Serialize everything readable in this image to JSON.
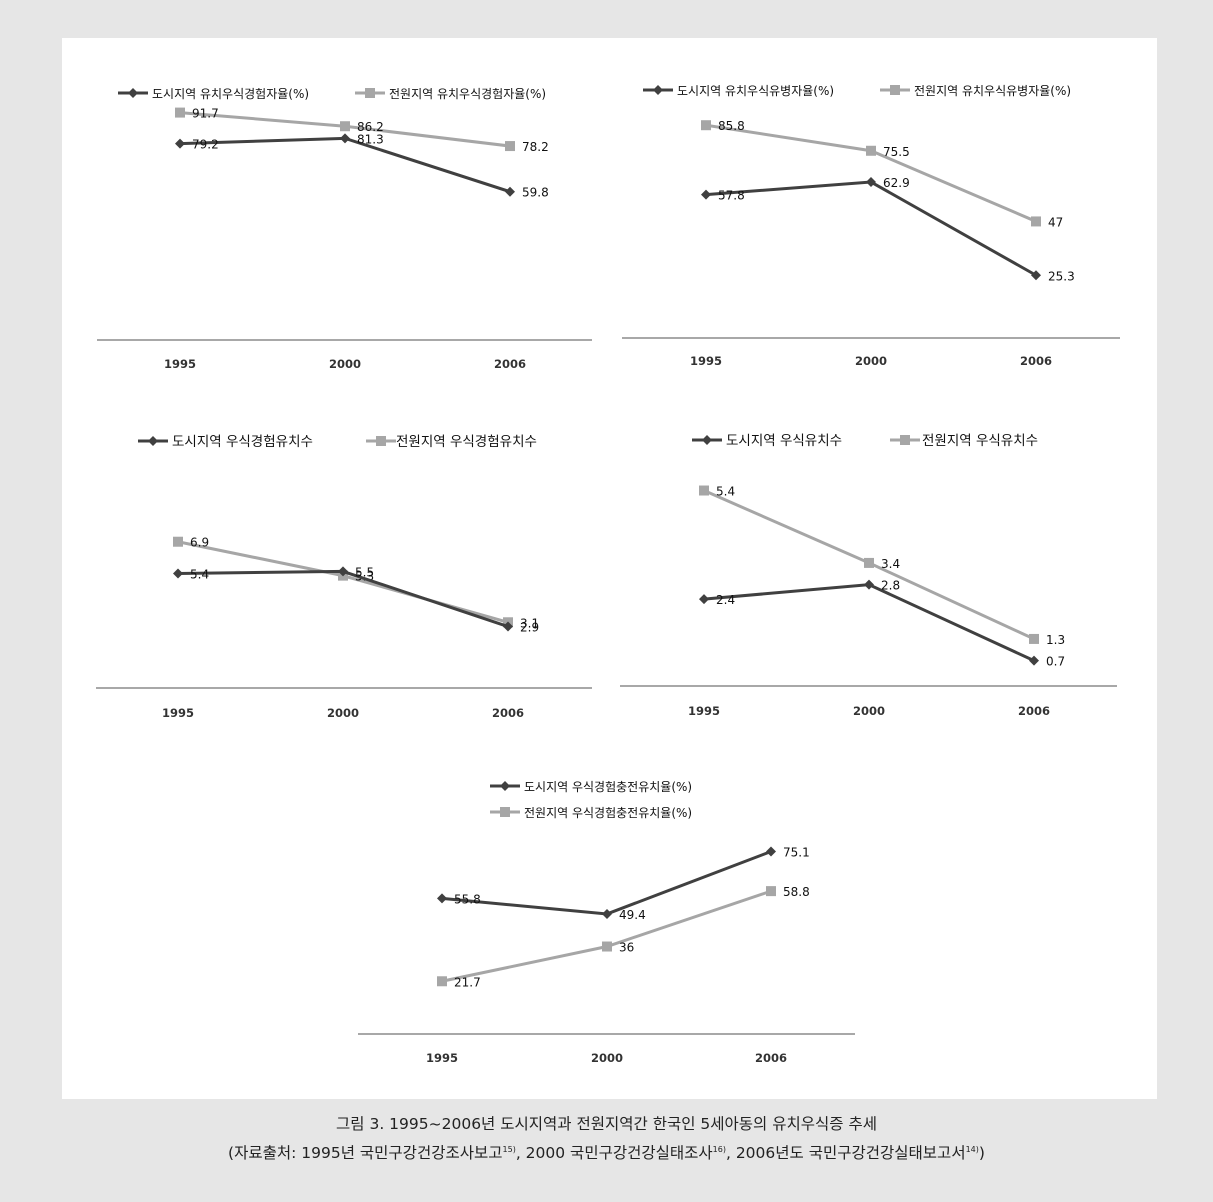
{
  "chart_data": [
    {
      "type": "line",
      "categories": [
        "1995",
        "2000",
        "2006"
      ],
      "series": [
        {
          "name": "도시지역 유치우식경험자율(%)",
          "values": [
            79.2,
            81.3,
            59.8
          ],
          "color": "#404040",
          "marker": "diamond"
        },
        {
          "name": "전원지역 유치우식경험자율(%)",
          "values": [
            91.7,
            86.2,
            78.2
          ],
          "color": "#a6a6a6",
          "marker": "square"
        }
      ],
      "legend_position": "top",
      "grid": false
    },
    {
      "type": "line",
      "categories": [
        "1995",
        "2000",
        "2006"
      ],
      "series": [
        {
          "name": "도시지역 유치우식유병자율(%)",
          "values": [
            57.8,
            62.9,
            25.3
          ],
          "color": "#404040",
          "marker": "diamond"
        },
        {
          "name": "전원지역 유치우식유병자율(%)",
          "values": [
            85.8,
            75.5,
            47.0
          ],
          "color": "#a6a6a6",
          "marker": "square"
        }
      ],
      "legend_position": "top",
      "grid": false
    },
    {
      "type": "line",
      "categories": [
        "1995",
        "2000",
        "2006"
      ],
      "series": [
        {
          "name": "도시지역 우식경험유치수",
          "values": [
            5.4,
            5.5,
            2.9
          ],
          "color": "#404040",
          "marker": "diamond"
        },
        {
          "name": "전원지역 우식경험유치수",
          "values": [
            6.9,
            5.3,
            3.1
          ],
          "color": "#a6a6a6",
          "marker": "square"
        }
      ],
      "legend_position": "top",
      "grid": false
    },
    {
      "type": "line",
      "categories": [
        "1995",
        "2000",
        "2006"
      ],
      "series": [
        {
          "name": "도시지역 우식유치수",
          "values": [
            2.4,
            2.8,
            0.7
          ],
          "color": "#404040",
          "marker": "diamond"
        },
        {
          "name": "전원지역 우식유치수",
          "values": [
            5.4,
            3.4,
            1.3
          ],
          "color": "#a6a6a6",
          "marker": "square"
        }
      ],
      "legend_position": "top",
      "grid": false
    },
    {
      "type": "line",
      "categories": [
        "1995",
        "2000",
        "2006"
      ],
      "series": [
        {
          "name": "도시지역 우식경험충전유치율(%)",
          "values": [
            55.8,
            49.4,
            75.1
          ],
          "color": "#404040",
          "marker": "diamond"
        },
        {
          "name": "전원지역 우식경험충전유치율(%)",
          "values": [
            21.7,
            36.0,
            58.8
          ],
          "color": "#a6a6a6",
          "marker": "square"
        }
      ],
      "legend_position": "top-stacked",
      "grid": false
    }
  ],
  "caption": {
    "line1": "그림 3. 1995~2006년 도시지역과 전원지역간 한국인 5세아동의 유치우식증 추세",
    "line2_a": "(자료출처: 1995년 국민구강건강조사보고",
    "ref1": "15)",
    "line2_b": ", 2000 국민구강건강실태조사",
    "ref2": "16)",
    "line2_c": ", 2006년도 국민구강건강실태보고서",
    "ref3": "14)",
    "line2_d": ")"
  }
}
